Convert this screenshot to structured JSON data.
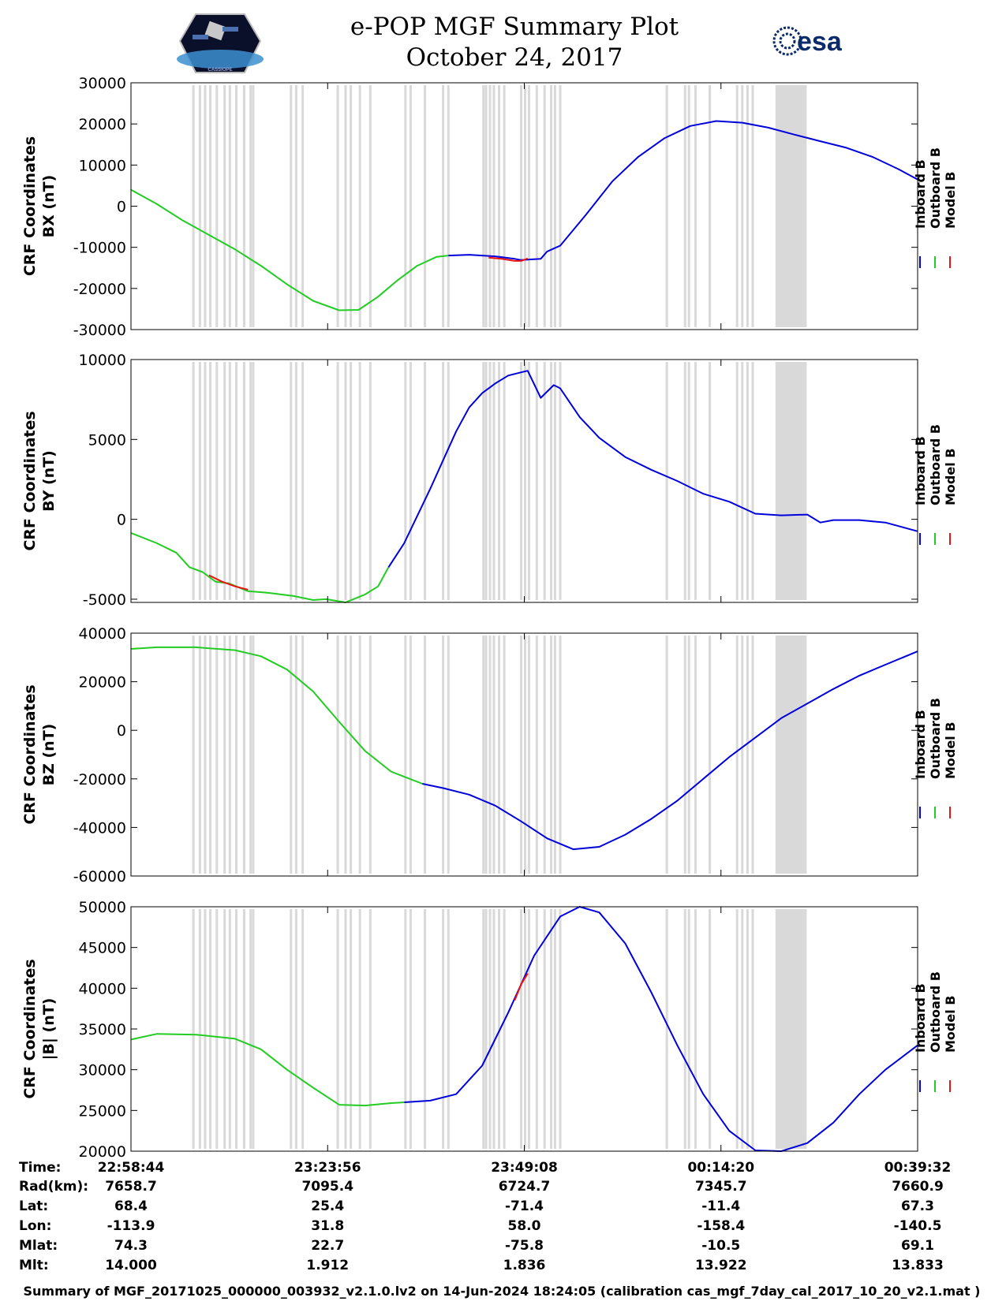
{
  "header": {
    "title_line1": "e-POP MGF Summary Plot",
    "title_line2": "October 24, 2017",
    "esa_logo_text": "esa",
    "cassiope_logo_text": "CASSIOPE"
  },
  "legend_labels": [
    "Inboard B",
    "Outboard B",
    "Model B"
  ],
  "colors": {
    "inboard": "#0000dd",
    "outboard": "#22cc22",
    "model": "#ee1111",
    "shade": "#d9d9d9"
  },
  "x_axis": {
    "t_min": 0,
    "t_max": 6048,
    "ticks": [
      0,
      1512,
      3024,
      4536,
      6048
    ]
  },
  "chart_data": [
    {
      "type": "line",
      "ylabel_line1": "CRF Coordinates",
      "ylabel_line2": "BX (nT)",
      "ylim": [
        -30000,
        30000
      ],
      "yticks": [
        30000,
        20000,
        10000,
        0,
        -10000,
        -20000,
        -30000
      ],
      "ytick_labels": [
        "30000",
        "20000",
        "10000",
        "0",
        "-10000",
        "-20000",
        "-30000"
      ],
      "x_units": "seconds since 22:58:44",
      "series": [
        {
          "name": "Inboard B",
          "x": [
            2440,
            2600,
            2800,
            2950,
            3000,
            3150,
            3200,
            3300,
            3500,
            3700,
            3900,
            4100,
            4300,
            4500,
            4700,
            4900,
            5100,
            5300,
            5500,
            5700,
            5900,
            6048
          ],
          "y": [
            -12000,
            -11800,
            -12200,
            -12800,
            -13100,
            -12800,
            -11000,
            -9600,
            -2000,
            6000,
            12000,
            16500,
            19500,
            20700,
            20300,
            19100,
            17400,
            15800,
            14200,
            12000,
            9000,
            6500
          ]
        },
        {
          "name": "Outboard B",
          "x": [
            0,
            200,
            400,
            600,
            800,
            1000,
            1200,
            1400,
            1600,
            1750,
            1900,
            2050,
            2200,
            2350,
            2440
          ],
          "y": [
            4000,
            500,
            -3500,
            -7000,
            -10500,
            -14500,
            -19000,
            -23000,
            -25300,
            -25200,
            -22000,
            -18000,
            -14500,
            -12300,
            -12000
          ]
        },
        {
          "name": "Model B",
          "x": [
            2750,
            2850,
            2950,
            3000,
            3050
          ],
          "y": [
            -12500,
            -12800,
            -13300,
            -13300,
            -12700
          ]
        }
      ]
    },
    {
      "type": "line",
      "ylabel_line1": "CRF Coordinates",
      "ylabel_line2": "BY (nT)",
      "ylim": [
        -5200,
        10000
      ],
      "yticks": [
        10000,
        5000,
        0,
        -5000
      ],
      "ytick_labels": [
        "10000",
        "5000",
        "0",
        "-5000"
      ],
      "x_units": "seconds since 22:58:44",
      "series": [
        {
          "name": "Inboard B",
          "x": [
            1980,
            2100,
            2200,
            2300,
            2400,
            2500,
            2600,
            2700,
            2800,
            2900,
            3000,
            3050,
            3150,
            3250,
            3300,
            3450,
            3600,
            3800,
            4000,
            4200,
            4400,
            4600,
            4800,
            5000,
            5200,
            5300,
            5400,
            5600,
            5800,
            6048
          ],
          "y": [
            -3000,
            -1500,
            200,
            1900,
            3700,
            5500,
            7000,
            7900,
            8500,
            9000,
            9200,
            9300,
            7600,
            8400,
            8200,
            6400,
            5100,
            3900,
            3100,
            2400,
            1600,
            1100,
            350,
            250,
            300,
            -200,
            -50,
            -50,
            -200,
            -750
          ]
        },
        {
          "name": "Outboard B",
          "x": [
            0,
            200,
            350,
            450,
            550,
            650,
            750,
            900,
            1050,
            1250,
            1400,
            1500,
            1650,
            1800,
            1900,
            1980
          ],
          "y": [
            -850,
            -1500,
            -2100,
            -3000,
            -3300,
            -3900,
            -4000,
            -4500,
            -4600,
            -4800,
            -5050,
            -5000,
            -5200,
            -4700,
            -4200,
            -3000
          ]
        },
        {
          "name": "Model B",
          "x": [
            600,
            700,
            800,
            900
          ],
          "y": [
            -3500,
            -3900,
            -4200,
            -4400
          ]
        }
      ]
    },
    {
      "type": "line",
      "ylabel_line1": "CRF Coordinates",
      "ylabel_line2": "BZ (nT)",
      "ylim": [
        -60000,
        40000
      ],
      "yticks": [
        40000,
        20000,
        0,
        -20000,
        -40000,
        -60000
      ],
      "ytick_labels": [
        "40000",
        "20000",
        "0",
        "-20000",
        "-40000",
        "-60000"
      ],
      "x_units": "seconds since 22:58:44",
      "series": [
        {
          "name": "Inboard B",
          "x": [
            2240,
            2400,
            2600,
            2800,
            3000,
            3200,
            3400,
            3600,
            3800,
            4000,
            4200,
            4400,
            4600,
            4800,
            5000,
            5200,
            5400,
            5600,
            5800,
            6048
          ],
          "y": [
            -22000,
            -23800,
            -26500,
            -31000,
            -37500,
            -44500,
            -49000,
            -48000,
            -43000,
            -36500,
            -29000,
            -20000,
            -11000,
            -3000,
            5000,
            11000,
            17000,
            22500,
            27000,
            32500
          ]
        },
        {
          "name": "Outboard B",
          "x": [
            0,
            200,
            500,
            800,
            1000,
            1200,
            1400,
            1600,
            1800,
            2000,
            2240
          ],
          "y": [
            33500,
            34200,
            34200,
            33000,
            30500,
            25000,
            16000,
            3500,
            -8500,
            -17000,
            -22000
          ]
        },
        {
          "name": "Model B",
          "x": [],
          "y": []
        }
      ]
    },
    {
      "type": "line",
      "ylabel_line1": "CRF Coordinates",
      "ylabel_line2": "|B| (nT)",
      "ylim": [
        20000,
        50000
      ],
      "yticks": [
        50000,
        45000,
        40000,
        35000,
        30000,
        25000,
        20000
      ],
      "ytick_labels": [
        "50000",
        "45000",
        "40000",
        "35000",
        "30000",
        "25000",
        "20000"
      ],
      "x_units": "seconds since 22:58:44",
      "series": [
        {
          "name": "Inboard B",
          "x": [
            2100,
            2300,
            2500,
            2700,
            2900,
            3100,
            3300,
            3450,
            3600,
            3800,
            4000,
            4200,
            4400,
            4600,
            4800,
            5000,
            5200,
            5400,
            5600,
            5800,
            6048
          ],
          "y": [
            26000,
            26200,
            27000,
            30500,
            37000,
            44000,
            48800,
            50000,
            49300,
            45500,
            39500,
            33000,
            27000,
            22500,
            20100,
            20000,
            21000,
            23500,
            27000,
            30000,
            33000
          ]
        },
        {
          "name": "Outboard B",
          "x": [
            0,
            200,
            500,
            800,
            1000,
            1200,
            1400,
            1600,
            1800,
            2000,
            2100
          ],
          "y": [
            33700,
            34400,
            34300,
            33800,
            32500,
            30000,
            27800,
            25700,
            25600,
            25900,
            26000
          ]
        },
        {
          "name": "Model B",
          "x": [
            2950,
            3000,
            3050
          ],
          "y": [
            38500,
            40500,
            41800
          ]
        }
      ]
    }
  ],
  "gray_bands": {
    "thin_x": [
      480,
      530,
      570,
      610,
      660,
      720,
      760,
      810,
      870,
      920,
      940,
      1230,
      1270,
      1320,
      1590,
      1650,
      1690,
      1760,
      1840,
      2110,
      2150,
      2260,
      2400,
      2440,
      2710,
      2730,
      2760,
      2790,
      2830,
      2870,
      3000,
      3030,
      3060,
      3120,
      3180,
      3230,
      3260,
      3300,
      4120,
      4260,
      4290,
      4340,
      4450,
      4660,
      4700,
      4740,
      4780
    ],
    "thick": [
      [
        4955,
        5195
      ]
    ]
  },
  "info_table": {
    "labels": [
      "Time:",
      "Rad(km):",
      "Lat:",
      "Lon:",
      "Mlat:",
      "Mlt:"
    ],
    "columns": [
      [
        "22:58:44",
        "7658.7",
        "68.4",
        "-113.9",
        "74.3",
        "14.000"
      ],
      [
        "23:23:56",
        "7095.4",
        "25.4",
        "31.8",
        "22.7",
        "1.912"
      ],
      [
        "23:49:08",
        "6724.7",
        "-71.4",
        "58.0",
        "-75.8",
        "1.836"
      ],
      [
        "00:14:20",
        "7345.7",
        "-11.4",
        "-158.4",
        "-10.5",
        "13.922"
      ],
      [
        "00:39:32",
        "7660.9",
        "67.3",
        "-140.5",
        "69.1",
        "13.833"
      ]
    ]
  },
  "footer": "Summary of MGF_20171025_000000_003932_v2.1.0.lv2 on 14-Jun-2024 18:24:05 (calibration cas_mgf_7day_cal_2017_10_20_v2.1.mat )"
}
